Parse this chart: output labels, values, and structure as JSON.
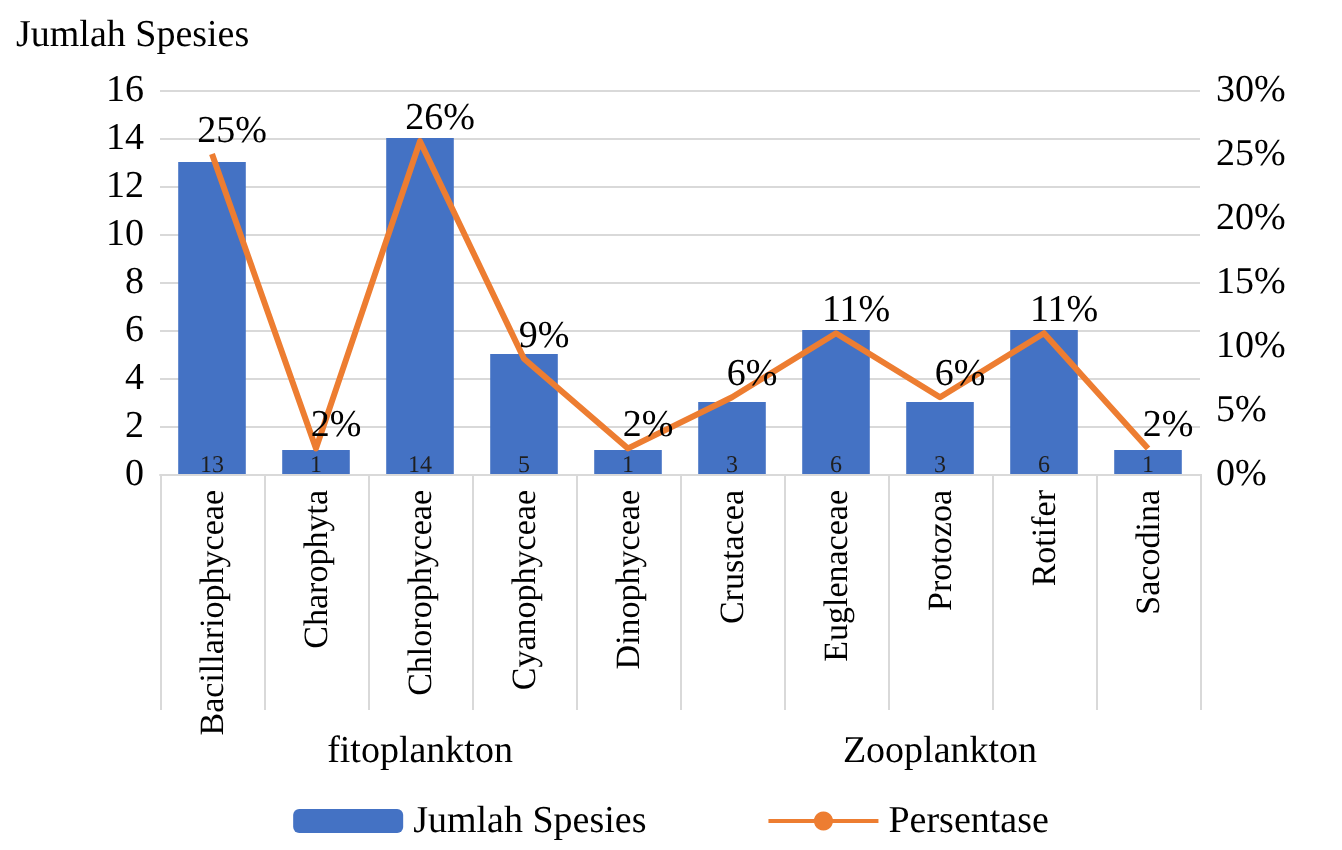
{
  "chart_data": {
    "type": "bar",
    "ylabel": "Jumlah Spesies",
    "categories": [
      "Bacillariophyceae",
      "Charophyta",
      "Chlorophyceae",
      "Cyanophyceae",
      "Dinophyceae",
      "Crustacea",
      "Euglenaceae",
      "Protozoa",
      "Rotifer",
      "Sacodina"
    ],
    "series": [
      {
        "name": "Jumlah Spesies",
        "color": "#4472c4",
        "values": [
          13,
          1,
          14,
          5,
          1,
          3,
          6,
          3,
          6,
          1
        ],
        "value_labels": [
          "13",
          "1",
          "14",
          "5",
          "1",
          "3",
          "6",
          "3",
          "6",
          "1"
        ]
      },
      {
        "name": "Persentase",
        "type": "line",
        "axis": "y2",
        "color": "#ed7d31",
        "values": [
          25,
          2,
          26,
          9,
          2,
          6,
          11,
          6,
          11,
          2
        ],
        "value_labels": [
          "25%",
          "2%",
          "26%",
          "9%",
          "2%",
          "6%",
          "11%",
          "6%",
          "11%",
          "2%"
        ]
      }
    ],
    "ylim": [
      0,
      16
    ],
    "yticks": [
      0,
      2,
      4,
      6,
      8,
      10,
      12,
      14,
      16
    ],
    "y2lim": [
      0,
      30
    ],
    "y2ticks": [
      {
        "value": 0,
        "label": "0%"
      },
      {
        "value": 5,
        "label": "5%"
      },
      {
        "value": 10,
        "label": "10%"
      },
      {
        "value": 15,
        "label": "15%"
      },
      {
        "value": 20,
        "label": "20%"
      },
      {
        "value": 25,
        "label": "25%"
      },
      {
        "value": 30,
        "label": "30%"
      }
    ],
    "annotations": [
      "fitoplankton",
      "Zooplankton"
    ],
    "grid": "y",
    "legend": "bottom",
    "marker": "none"
  }
}
